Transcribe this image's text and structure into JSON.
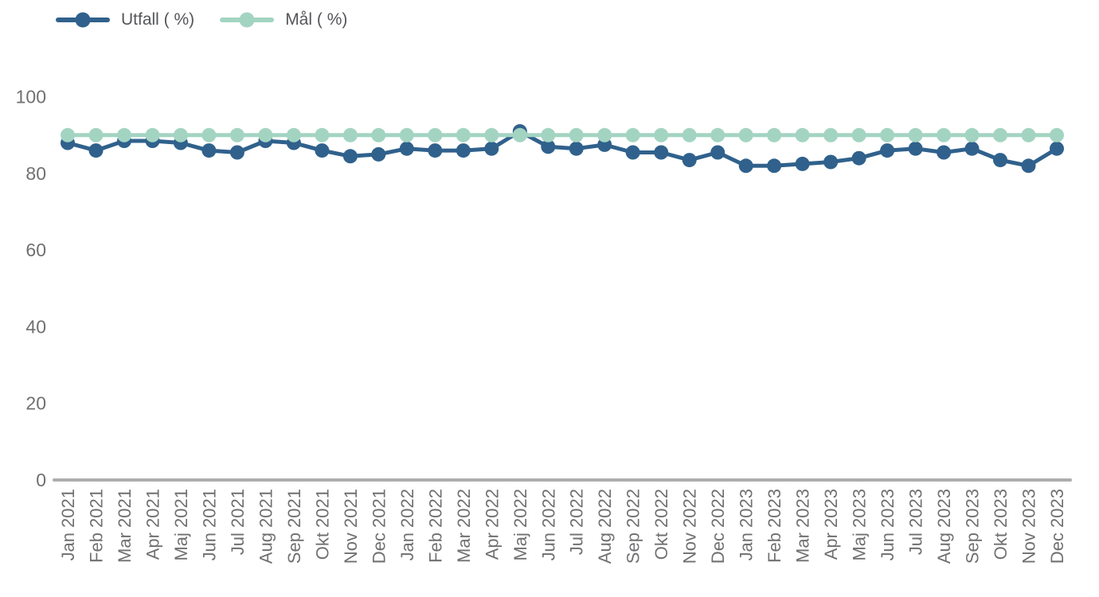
{
  "page": {
    "background": "#ffffff"
  },
  "chart_data": {
    "type": "line",
    "title": "",
    "xlabel": "",
    "ylabel": "",
    "categories": [
      "Jan 2021",
      "Feb 2021",
      "Mar 2021",
      "Apr 2021",
      "Maj 2021",
      "Jun 2021",
      "Jul 2021",
      "Aug 2021",
      "Sep 2021",
      "Okt 2021",
      "Nov 2021",
      "Dec 2021",
      "Jan 2022",
      "Feb 2022",
      "Mar 2022",
      "Apr 2022",
      "Maj 2022",
      "Jun 2022",
      "Jul 2022",
      "Aug 2022",
      "Sep 2022",
      "Okt 2022",
      "Nov 2022",
      "Dec 2022",
      "Jan 2023",
      "Feb 2023",
      "Mar 2023",
      "Apr 2023",
      "Maj 2023",
      "Jun 2023",
      "Jul 2023",
      "Aug 2023",
      "Sep 2023",
      "Okt 2023",
      "Nov 2023",
      "Dec 2023"
    ],
    "series": [
      {
        "name": "Utfall ( %)",
        "color": "#30618c",
        "values": [
          88,
          86,
          88.5,
          88.5,
          88,
          86,
          85.5,
          88.5,
          88,
          86,
          84.5,
          85,
          86.5,
          86,
          86,
          86.5,
          91,
          87,
          86.5,
          87.5,
          85.5,
          85.5,
          83.5,
          85.5,
          82,
          82,
          82.5,
          83,
          84,
          86,
          86.5,
          85.5,
          86.5,
          83.5,
          82,
          86.5
        ]
      },
      {
        "name": "Mål ( %)",
        "color": "#a3d4c2",
        "values": [
          90,
          90,
          90,
          90,
          90,
          90,
          90,
          90,
          90,
          90,
          90,
          90,
          90,
          90,
          90,
          90,
          90,
          90,
          90,
          90,
          90,
          90,
          90,
          90,
          90,
          90,
          90,
          90,
          90,
          90,
          90,
          90,
          90,
          90,
          90,
          90
        ]
      }
    ],
    "ylim": [
      0,
      100
    ],
    "yticks": [
      0,
      20,
      40,
      60,
      80,
      100
    ],
    "grid": false,
    "legend_position": "top-left",
    "x_tick_rotation_degrees": -90,
    "axis_line_color": "#adadad",
    "tick_label_color": "#6f7072",
    "legend_text_color": "#55565a"
  }
}
